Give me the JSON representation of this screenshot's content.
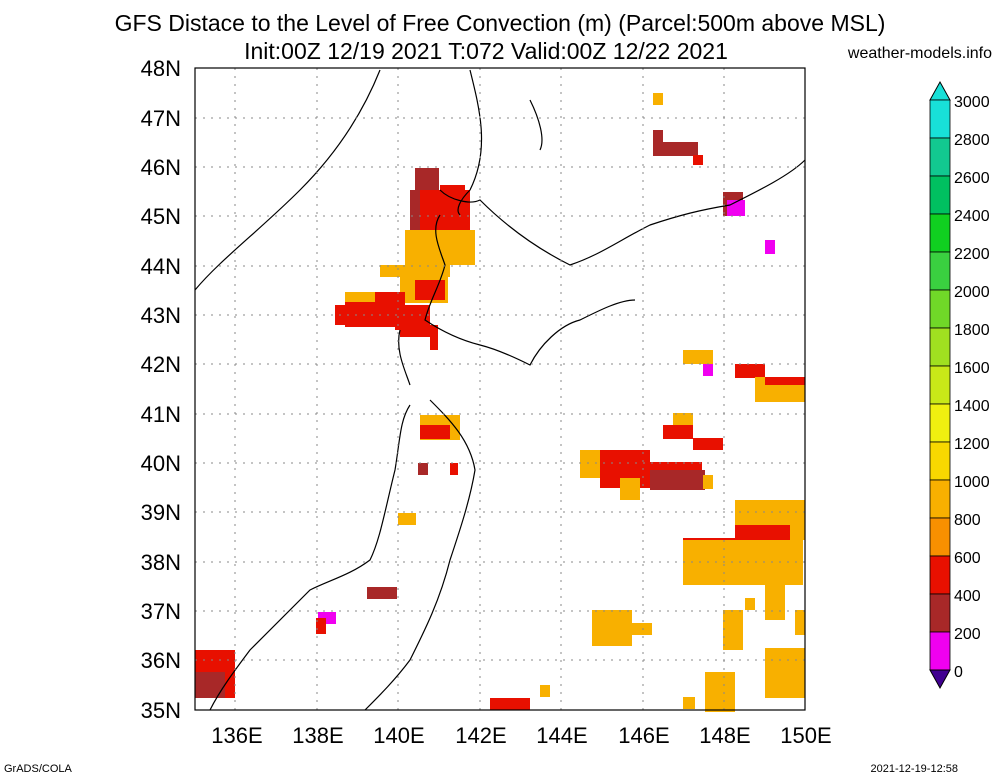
{
  "header": {
    "title": "GFS Distace to the Level of Free Convection (m) (Parcel:500m above MSL)",
    "subtitle": "Init:00Z 12/19 2021 T:072 Valid:00Z 12/22 2021",
    "source": "weather-models.info"
  },
  "map": {
    "lat_labels": [
      "48N",
      "47N",
      "46N",
      "45N",
      "44N",
      "43N",
      "42N",
      "41N",
      "40N",
      "39N",
      "38N",
      "37N",
      "36N",
      "35N"
    ],
    "lon_labels": [
      "136E",
      "138E",
      "140E",
      "142E",
      "144E",
      "146E",
      "148E",
      "150E"
    ],
    "lat_range": [
      35,
      48
    ],
    "lon_range": [
      135,
      150
    ],
    "gridlines": "dotted"
  },
  "colorbar": {
    "labels": [
      "3000",
      "2800",
      "2600",
      "2400",
      "2200",
      "2000",
      "1800",
      "1600",
      "1400",
      "1200",
      "1000",
      "800",
      "600",
      "400",
      "200",
      "0"
    ],
    "colors": [
      "#18e0d8",
      "#12c890",
      "#00c060",
      "#10d020",
      "#3ad040",
      "#70d828",
      "#a0e020",
      "#c8e818",
      "#f0f010",
      "#f8d800",
      "#f8b000",
      "#f89000",
      "#e81000",
      "#a82828",
      "#f000f0",
      "#400090"
    ]
  },
  "footer": {
    "left": "GrADS/COLA",
    "right": "2021-12-19-12:58"
  }
}
